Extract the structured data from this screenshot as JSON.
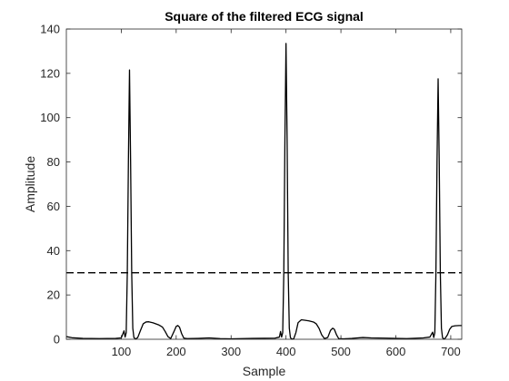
{
  "chart_data": {
    "type": "line",
    "title": "Square of the filtered ECG signal",
    "xlabel": "Sample",
    "ylabel": "Amplitude",
    "xlim": [
      0,
      720
    ],
    "ylim": [
      0,
      140
    ],
    "xticks": [
      100,
      200,
      300,
      400,
      500,
      600,
      700
    ],
    "yticks": [
      0,
      20,
      40,
      60,
      80,
      100,
      120,
      140
    ],
    "grid": false,
    "line_color": "#000000",
    "series": [
      {
        "style": "solid",
        "points": [
          [
            0,
            1.2
          ],
          [
            10,
            0.7
          ],
          [
            30,
            0.4
          ],
          [
            60,
            0.3
          ],
          [
            90,
            0.4
          ],
          [
            100,
            0.6
          ],
          [
            103,
            2.5
          ],
          [
            105,
            3.8
          ],
          [
            107,
            1.0
          ],
          [
            109,
            3.0
          ],
          [
            111,
            30.0
          ],
          [
            113,
            80.0
          ],
          [
            115,
            121.5
          ],
          [
            117,
            80.0
          ],
          [
            119,
            30.0
          ],
          [
            121,
            5.0
          ],
          [
            123,
            0.8
          ],
          [
            126,
            0.1
          ],
          [
            130,
            0.8
          ],
          [
            135,
            4.0
          ],
          [
            140,
            7.0
          ],
          [
            145,
            7.8
          ],
          [
            150,
            7.9
          ],
          [
            158,
            7.4
          ],
          [
            168,
            6.5
          ],
          [
            175,
            5.5
          ],
          [
            180,
            3.5
          ],
          [
            185,
            1.2
          ],
          [
            190,
            0.3
          ],
          [
            196,
            3.5
          ],
          [
            200,
            5.8
          ],
          [
            203,
            6.2
          ],
          [
            206,
            5.5
          ],
          [
            210,
            2.5
          ],
          [
            214,
            0.5
          ],
          [
            220,
            0.3
          ],
          [
            240,
            0.4
          ],
          [
            260,
            0.6
          ],
          [
            280,
            0.3
          ],
          [
            300,
            0.2
          ],
          [
            320,
            0.3
          ],
          [
            340,
            0.4
          ],
          [
            380,
            0.5
          ],
          [
            388,
            1.0
          ],
          [
            390,
            3.5
          ],
          [
            392,
            1.0
          ],
          [
            394,
            3.0
          ],
          [
            396,
            30.0
          ],
          [
            398,
            90.0
          ],
          [
            400,
            133.5
          ],
          [
            402,
            90.0
          ],
          [
            404,
            30.0
          ],
          [
            406,
            5.0
          ],
          [
            408,
            0.8
          ],
          [
            410,
            0.1
          ],
          [
            414,
            0.2
          ],
          [
            418,
            3.0
          ],
          [
            422,
            7.5
          ],
          [
            428,
            8.8
          ],
          [
            434,
            8.6
          ],
          [
            442,
            8.3
          ],
          [
            450,
            7.8
          ],
          [
            455,
            7.0
          ],
          [
            460,
            5.0
          ],
          [
            465,
            2.0
          ],
          [
            470,
            0.3
          ],
          [
            476,
            0.8
          ],
          [
            481,
            4.0
          ],
          [
            485,
            5.0
          ],
          [
            488,
            4.5
          ],
          [
            492,
            2.0
          ],
          [
            496,
            0.3
          ],
          [
            505,
            0.2
          ],
          [
            520,
            0.4
          ],
          [
            540,
            0.8
          ],
          [
            555,
            0.6
          ],
          [
            580,
            0.5
          ],
          [
            620,
            0.3
          ],
          [
            650,
            0.6
          ],
          [
            662,
            1.0
          ],
          [
            667,
            3.2
          ],
          [
            669,
            0.8
          ],
          [
            671,
            3.0
          ],
          [
            673,
            30.0
          ],
          [
            675,
            80.0
          ],
          [
            677,
            117.5
          ],
          [
            679,
            80.0
          ],
          [
            681,
            30.0
          ],
          [
            683,
            5.0
          ],
          [
            685,
            0.8
          ],
          [
            687,
            0.1
          ],
          [
            690,
            0.5
          ],
          [
            694,
            2.0
          ],
          [
            698,
            4.5
          ],
          [
            702,
            5.8
          ],
          [
            708,
            6.1
          ],
          [
            715,
            6.2
          ],
          [
            720,
            6.2
          ]
        ]
      },
      {
        "style": "dashed",
        "points": [
          [
            0,
            30
          ],
          [
            720,
            30
          ]
        ]
      }
    ]
  }
}
